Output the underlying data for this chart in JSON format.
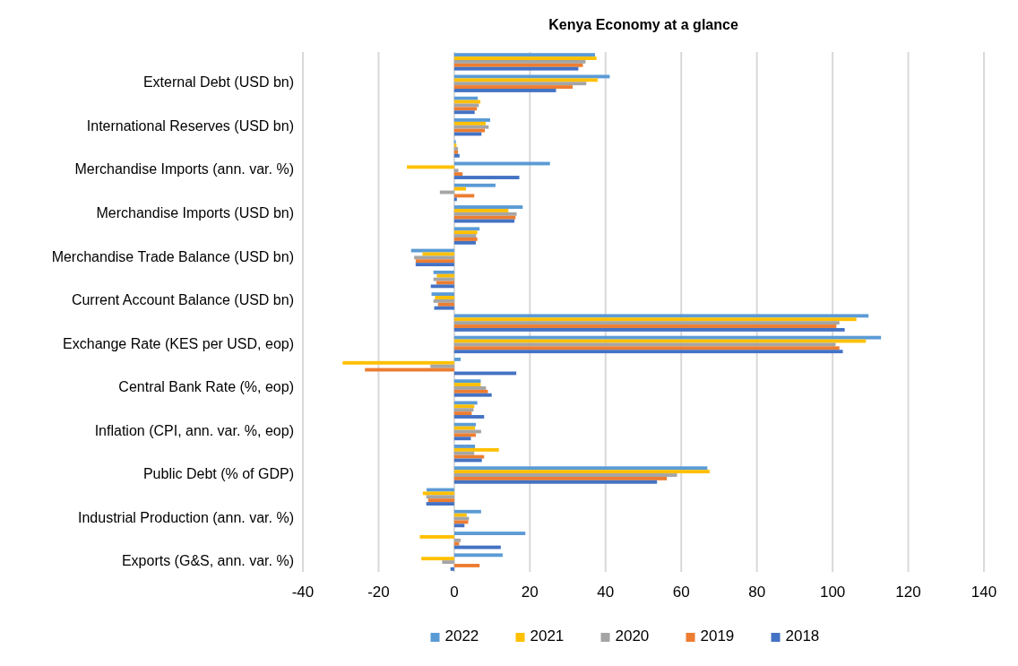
{
  "chart_data": {
    "type": "bar",
    "orientation": "horizontal",
    "title": "Kenya Economy at a glance",
    "categories": [
      null,
      "External Debt (USD bn)",
      null,
      "International Reserves (USD bn)",
      null,
      "Merchandise Imports (ann. var. %)",
      null,
      "Merchandise Imports (USD bn)",
      null,
      "Merchandise Trade Balance (USD bn)",
      null,
      "Current Account Balance (USD bn)",
      null,
      "Exchange Rate (KES per USD, eop)",
      null,
      "Central Bank Rate (%, eop)",
      null,
      "Inflation (CPI, ann. var. %, eop)",
      null,
      "Public Debt (% of GDP)",
      null,
      "Industrial Production (ann. var. %)",
      null,
      "Exports (G&S, ann. var. %)"
    ],
    "series": [
      {
        "name": "2022",
        "color": "#5b9bd5",
        "values": [
          37.2,
          41.1,
          6.2,
          9.5,
          0.4,
          25.3,
          10.9,
          18.1,
          6.7,
          -11.4,
          -5.5,
          -6.0,
          109.5,
          112.8,
          1.7,
          7.0,
          6.1,
          5.7,
          5.5,
          66.9,
          -7.3,
          7.1,
          18.8,
          12.8
        ]
      },
      {
        "name": "2021",
        "color": "#ffc000",
        "values": [
          37.6,
          37.9,
          6.9,
          8.3,
          0.6,
          -12.5,
          3.1,
          14.3,
          6.1,
          -8.4,
          -4.6,
          -5.1,
          106.3,
          108.8,
          -29.5,
          7.0,
          5.3,
          5.5,
          11.8,
          67.5,
          -8.3,
          3.3,
          -9.1,
          -8.7
        ]
      },
      {
        "name": "2020",
        "color": "#a5a5a5",
        "values": [
          34.7,
          34.9,
          6.5,
          9.1,
          1.0,
          1.1,
          -3.8,
          16.5,
          5.8,
          -10.6,
          -5.5,
          -5.5,
          101.8,
          100.8,
          -6.3,
          8.4,
          5.1,
          7.1,
          5.3,
          58.9,
          -7.4,
          3.9,
          1.7,
          -3.2
        ]
      },
      {
        "name": "2019",
        "color": "#ed7d31",
        "values": [
          34.0,
          31.3,
          6.0,
          8.1,
          1.0,
          2.2,
          5.3,
          16.2,
          6.1,
          -10.2,
          -4.7,
          -4.3,
          101.0,
          101.8,
          -23.6,
          8.9,
          4.6,
          5.7,
          7.9,
          56.2,
          -6.9,
          3.7,
          1.3,
          6.7
        ]
      },
      {
        "name": "2018",
        "color": "#4472c4",
        "values": [
          32.8,
          26.9,
          5.4,
          7.2,
          1.4,
          17.2,
          0.7,
          15.9,
          5.7,
          -10.2,
          -6.2,
          -5.3,
          103.2,
          102.7,
          16.4,
          9.9,
          7.9,
          4.4,
          7.3,
          53.6,
          -7.4,
          2.7,
          12.3,
          -1.0
        ]
      }
    ],
    "xlim": [
      -40,
      140
    ],
    "xticks": [
      -40,
      -20,
      0,
      20,
      40,
      60,
      80,
      100,
      120,
      140
    ],
    "grid": "x",
    "legend": "bottom"
  }
}
